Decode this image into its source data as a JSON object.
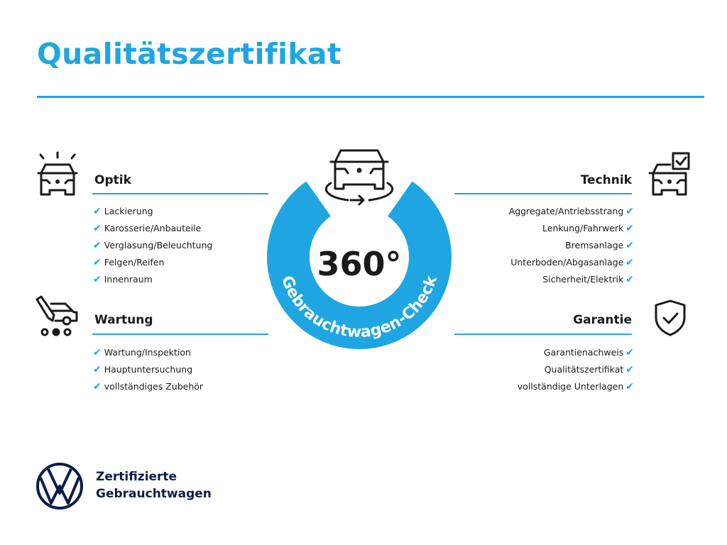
{
  "title": "Qualitätszertifikat",
  "colors": {
    "accent": "#1fa6e2",
    "text": "#1a1a1a",
    "brand_navy": "#0a1d4a"
  },
  "badge": {
    "number": "360°",
    "arc_text": "Gebrauchtwagen-Check",
    "icon": "rotating-car-icon"
  },
  "sections": {
    "optik": {
      "heading": "Optik",
      "icon": "car-lights-icon",
      "items": [
        "Lackierung",
        "Karosserie/Anbauteile",
        "Verglasung/Beleuchtung",
        "Felgen/Reifen",
        "Innenraum"
      ]
    },
    "wartung": {
      "heading": "Wartung",
      "icon": "service-van-icon",
      "items": [
        "Wartung/Inspektion",
        "Hauptuntersuchung",
        "vollständiges Zubehör"
      ]
    },
    "technik": {
      "heading": "Technik",
      "icon": "car-checkbox-icon",
      "items": [
        "Aggregate/Antriebsstrang",
        "Lenkung/Fahrwerk",
        "Bremsanlage",
        "Unterboden/Abgasanlage",
        "Sicherheit/Elektrik"
      ]
    },
    "garantie": {
      "heading": "Garantie",
      "icon": "shield-check-icon",
      "items": [
        "Garantienachweis",
        "Qualitätszertifikat",
        "vollständige Unterlagen"
      ]
    }
  },
  "check_mark": "✔",
  "brand": {
    "logo": "VW",
    "line1": "Zertifizierte",
    "line2": "Gebrauchtwagen"
  }
}
